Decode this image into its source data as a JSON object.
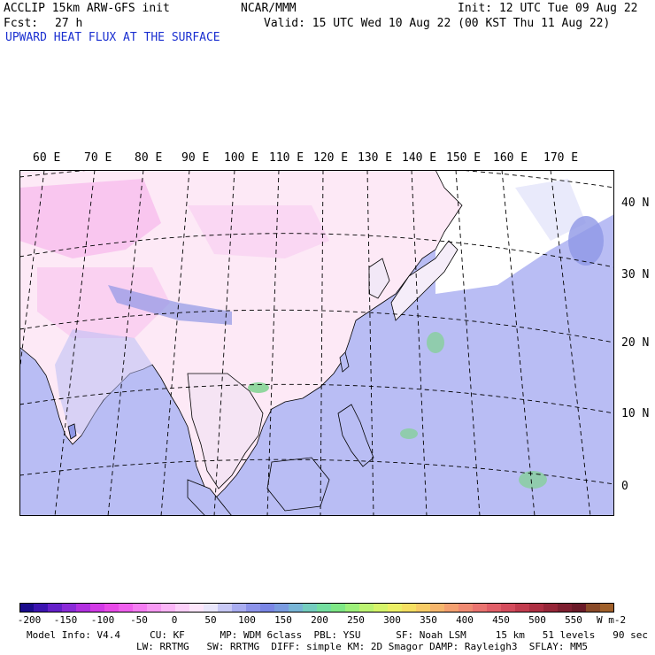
{
  "header": {
    "model": "ACCLIP 15km ARW-GFS init",
    "org": "NCAR/MMM",
    "init": "Init: 12 UTC Tue 09 Aug 22",
    "fcst_label": "Fcst:",
    "fcst_value": "27 h",
    "valid": "Valid: 15 UTC Wed 10 Aug 22 (00 KST Thu 11 Aug 22)",
    "field": "UPWARD HEAT FLUX AT THE SURFACE"
  },
  "map": {
    "lon_labels": [
      "60 E",
      "70 E",
      "80 E",
      "90 E",
      "100 E",
      "110 E",
      "120 E",
      "130 E",
      "140 E",
      "150 E",
      "160 E",
      "170 E"
    ],
    "lat_labels": [
      "40 N",
      "30 N",
      "20 N",
      "10 N",
      "0"
    ],
    "colors": {
      "ocean": "#b9bdf4",
      "land_low": "#fde9f6",
      "land_neg": "#f6b7ec",
      "moist": "#8f97e6",
      "positive_green": "#7fd38f"
    }
  },
  "colorbar": {
    "ticks": [
      "-200",
      "-150",
      "-100",
      "-50",
      "0",
      "50",
      "100",
      "150",
      "200",
      "250",
      "300",
      "350",
      "400",
      "450",
      "500",
      "550"
    ],
    "units": "W m-2",
    "colors": [
      "#1a0b8c",
      "#3b14b0",
      "#6420c9",
      "#8a2ad8",
      "#b230e0",
      "#d23ae6",
      "#e84ae8",
      "#f060ee",
      "#f57df2",
      "#f89af4",
      "#fbb6f7",
      "#fcd0f9",
      "#fde6fb",
      "#e9e6fb",
      "#c8c9f6",
      "#a9adf1",
      "#8c93ea",
      "#7a86e5",
      "#7a9be0",
      "#78b5d6",
      "#74cdbf",
      "#74dfa0",
      "#7fe886",
      "#9df07a",
      "#bcf472",
      "#d6f56a",
      "#ecf066",
      "#f6e062",
      "#f8cc66",
      "#f6b66c",
      "#f4a070",
      "#f08a72",
      "#ea7470",
      "#e25f68",
      "#d44c5c",
      "#c23c4e",
      "#ad2f42",
      "#962638",
      "#7e1f30",
      "#6a1a28",
      "#8a4a28",
      "#a0602a"
    ]
  },
  "footer": {
    "line1": "Model Info: V4.4     CU: KF      MP: WDM 6class  PBL: YSU      SF: Noah LSM     15 km   51 levels   90 sec",
    "line2": "LW: RRTMG   SW: RRTMG  DIFF: simple KM: 2D Smagor DAMP: Rayleigh3  SFLAY: MM5"
  }
}
